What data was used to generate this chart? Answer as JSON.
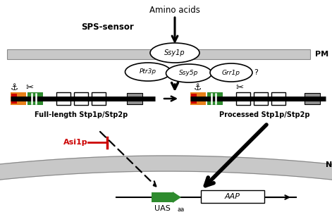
{
  "bg_color": "#ffffff",
  "pm_color": "#c8c8c8",
  "nm_color": "#c8c8c8",
  "orange_color": "#e8801a",
  "green_color": "#2e8b2e",
  "red_color": "#cc0000",
  "black": "#000000",
  "gray_box": "#909090",
  "labels": {
    "amino_acids": "Amino acids",
    "sps_sensor": "SPS-sensor",
    "pm": "PM",
    "nm": "NM",
    "ssy1p": "Ssy1p",
    "ptr3p": "Ptr3p",
    "ssy5p": "Ssy5p",
    "grr1p": "Grr1p",
    "question": "?",
    "full_length": "Full-length Stp1p/Stp2p",
    "processed": "Processed Stp1p/Stp2p",
    "asi1p": "Asi1p",
    "uas": "UAS",
    "aa_sub": "aa",
    "aap": "AAP"
  }
}
